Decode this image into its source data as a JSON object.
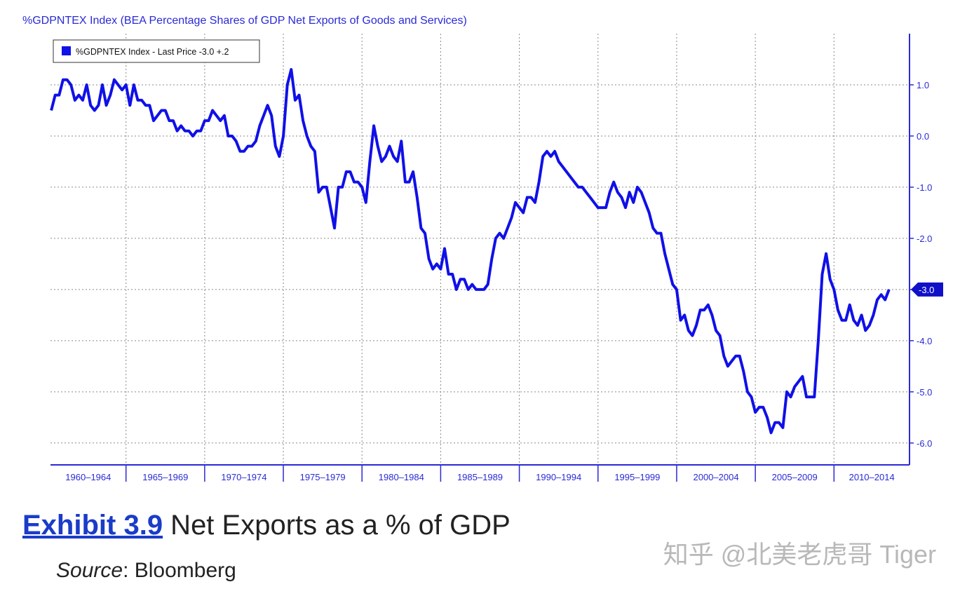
{
  "chart_data": {
    "type": "line",
    "title": "%GDPNTEX Index (BEA Percentage Shares of GDP Net Exports of Goods and Services)",
    "x": [
      1960.25,
      1960.5,
      1960.75,
      1961,
      1961.25,
      1961.5,
      1961.75,
      1962,
      1962.25,
      1962.5,
      1962.75,
      1963,
      1963.25,
      1963.5,
      1963.75,
      1964,
      1964.25,
      1964.5,
      1964.75,
      1965,
      1965.25,
      1965.5,
      1965.75,
      1966,
      1966.25,
      1966.5,
      1966.75,
      1967,
      1967.25,
      1967.5,
      1967.75,
      1968,
      1968.25,
      1968.5,
      1968.75,
      1969,
      1969.25,
      1969.5,
      1969.75,
      1970,
      1970.25,
      1970.5,
      1970.75,
      1971,
      1971.25,
      1971.5,
      1971.75,
      1972,
      1972.25,
      1972.5,
      1972.75,
      1973,
      1973.25,
      1973.5,
      1973.75,
      1974,
      1974.25,
      1974.5,
      1974.75,
      1975,
      1975.25,
      1975.5,
      1975.75,
      1976,
      1976.25,
      1976.5,
      1976.75,
      1977,
      1977.25,
      1977.5,
      1977.75,
      1978,
      1978.25,
      1978.5,
      1978.75,
      1979,
      1979.25,
      1979.5,
      1979.75,
      1980,
      1980.25,
      1980.5,
      1980.75,
      1981,
      1981.25,
      1981.5,
      1981.75,
      1982,
      1982.25,
      1982.5,
      1982.75,
      1983,
      1983.25,
      1983.5,
      1983.75,
      1984,
      1984.25,
      1984.5,
      1984.75,
      1985,
      1985.25,
      1985.5,
      1985.75,
      1986,
      1986.25,
      1986.5,
      1986.75,
      1987,
      1987.25,
      1987.5,
      1987.75,
      1988,
      1988.25,
      1988.5,
      1988.75,
      1989,
      1989.25,
      1989.5,
      1989.75,
      1990,
      1990.25,
      1990.5,
      1990.75,
      1991,
      1991.25,
      1991.5,
      1991.75,
      1992,
      1992.25,
      1992.5,
      1992.75,
      1993,
      1993.25,
      1993.5,
      1993.75,
      1994,
      1994.25,
      1994.5,
      1994.75,
      1995,
      1995.25,
      1995.5,
      1995.75,
      1996,
      1996.25,
      1996.5,
      1996.75,
      1997,
      1997.25,
      1997.5,
      1997.75,
      1998,
      1998.25,
      1998.5,
      1998.75,
      1999,
      1999.25,
      1999.5,
      1999.75,
      2000,
      2000.25,
      2000.5,
      2000.75,
      2001,
      2001.25,
      2001.5,
      2001.75,
      2002,
      2002.25,
      2002.5,
      2002.75,
      2003,
      2003.25,
      2003.5,
      2003.75,
      2004,
      2004.25,
      2004.5,
      2004.75,
      2005,
      2005.25,
      2005.5,
      2005.75,
      2006,
      2006.25,
      2006.5,
      2006.75,
      2007,
      2007.25,
      2007.5,
      2007.75,
      2008,
      2008.25,
      2008.5,
      2008.75,
      2009,
      2009.25,
      2009.5,
      2009.75,
      2010,
      2010.25,
      2010.5,
      2010.75,
      2011,
      2011.25,
      2011.5,
      2011.75,
      2012,
      2012.25,
      2012.5,
      2012.75,
      2013,
      2013.25,
      2013.5
    ],
    "series": [
      {
        "name": "%GDPNTEX Index - Last Price -3.0  +.2",
        "color": "#1010e8",
        "values": [
          0.5,
          0.8,
          0.8,
          1.1,
          1.1,
          1.0,
          0.7,
          0.8,
          0.7,
          1.0,
          0.6,
          0.5,
          0.6,
          1.0,
          0.6,
          0.8,
          1.1,
          1.0,
          0.9,
          1.0,
          0.6,
          1.0,
          0.7,
          0.7,
          0.6,
          0.6,
          0.3,
          0.4,
          0.5,
          0.5,
          0.3,
          0.3,
          0.1,
          0.2,
          0.1,
          0.1,
          0.0,
          0.1,
          0.1,
          0.3,
          0.3,
          0.5,
          0.4,
          0.3,
          0.4,
          0.0,
          0.0,
          -0.1,
          -0.3,
          -0.3,
          -0.2,
          -0.2,
          -0.1,
          0.2,
          0.4,
          0.6,
          0.4,
          -0.2,
          -0.4,
          0.0,
          1.0,
          1.3,
          0.7,
          0.8,
          0.3,
          0.0,
          -0.2,
          -0.3,
          -1.1,
          -1.0,
          -1.0,
          -1.4,
          -1.8,
          -1.0,
          -1.0,
          -0.7,
          -0.7,
          -0.9,
          -0.9,
          -1.0,
          -1.3,
          -0.5,
          0.2,
          -0.2,
          -0.5,
          -0.4,
          -0.2,
          -0.4,
          -0.5,
          -0.1,
          -0.9,
          -0.9,
          -0.7,
          -1.2,
          -1.8,
          -1.9,
          -2.4,
          -2.6,
          -2.5,
          -2.6,
          -2.2,
          -2.7,
          -2.7,
          -3.0,
          -2.8,
          -2.8,
          -3.0,
          -2.9,
          -3.0,
          -3.0,
          -3.0,
          -2.9,
          -2.4,
          -2.0,
          -1.9,
          -2.0,
          -1.8,
          -1.6,
          -1.3,
          -1.4,
          -1.5,
          -1.2,
          -1.2,
          -1.3,
          -0.9,
          -0.4,
          -0.3,
          -0.4,
          -0.3,
          -0.5,
          -0.6,
          -0.7,
          -0.8,
          -0.9,
          -1.0,
          -1.0,
          -1.1,
          -1.2,
          -1.3,
          -1.4,
          -1.4,
          -1.4,
          -1.1,
          -0.9,
          -1.1,
          -1.2,
          -1.4,
          -1.1,
          -1.3,
          -1.0,
          -1.1,
          -1.3,
          -1.5,
          -1.8,
          -1.9,
          -1.9,
          -2.3,
          -2.6,
          -2.9,
          -3.0,
          -3.6,
          -3.5,
          -3.8,
          -3.9,
          -3.7,
          -3.4,
          -3.4,
          -3.3,
          -3.5,
          -3.8,
          -3.9,
          -4.3,
          -4.5,
          -4.4,
          -4.3,
          -4.3,
          -4.6,
          -5.0,
          -5.1,
          -5.4,
          -5.3,
          -5.3,
          -5.5,
          -5.8,
          -5.6,
          -5.6,
          -5.7,
          -5.0,
          -5.1,
          -4.9,
          -4.8,
          -4.7,
          -5.1,
          -5.1,
          -5.1,
          -4.0,
          -2.7,
          -2.3,
          -2.8,
          -3.0,
          -3.4,
          -3.6,
          -3.6,
          -3.3,
          -3.6,
          -3.7,
          -3.5,
          -3.8,
          -3.7,
          -3.5,
          -3.2,
          -3.1,
          -3.2,
          -3.0
        ]
      }
    ],
    "last_price": {
      "value": -3.0,
      "label": "-3.0"
    },
    "xlim": [
      1960.2,
      2014.8
    ],
    "xticks": [
      1965,
      1970,
      1975,
      1980,
      1985,
      1990,
      1995,
      2000,
      2005,
      2010
    ],
    "x_period_labels": [
      "1960–1964",
      "1965–1969",
      "1970–1974",
      "1975–1979",
      "1980–1984",
      "1985–1989",
      "1990–1994",
      "1995–1999",
      "2000–2004",
      "2005–2009",
      "2010–2014"
    ],
    "ylim": [
      -6.4,
      2.0
    ],
    "yticks": [
      {
        "value": 1,
        "label": "1.0"
      },
      {
        "value": 0,
        "label": "0.0"
      },
      {
        "value": -1,
        "label": "-1.0"
      },
      {
        "value": -2,
        "label": "-2.0"
      },
      {
        "value": -3,
        "label": "-3.0"
      },
      {
        "value": -4,
        "label": "-4.0"
      },
      {
        "value": -5,
        "label": "-5.0"
      },
      {
        "value": -6,
        "label": "-6.0"
      }
    ],
    "grid": true,
    "legend": "top-left",
    "axis_color": "#2a2ad6"
  },
  "caption": {
    "exhibit": "Exhibit 3.9",
    "title": " Net Exports as a % of GDP",
    "source_label": "Source",
    "source": ": Bloomberg"
  },
  "watermark": "知乎 @北美老虎哥 Tiger"
}
